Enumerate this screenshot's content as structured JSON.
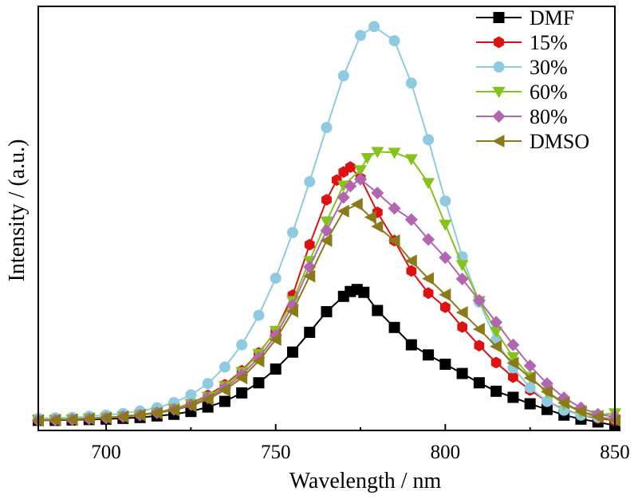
{
  "chart_data": {
    "type": "line",
    "title": "",
    "xlabel": "Wavelength / nm",
    "ylabel": "Intensity / (a.u.)",
    "xlim": [
      680,
      850
    ],
    "ylim": [
      0,
      1.05
    ],
    "xticks": [
      700,
      750,
      800,
      850
    ],
    "yticks_shown": false,
    "grid": false,
    "legend_position": "top-right",
    "series": [
      {
        "name": "DMF",
        "color": "#000000",
        "marker": "square",
        "x": [
          680,
          685,
          690,
          695,
          700,
          705,
          710,
          715,
          720,
          725,
          730,
          735,
          740,
          745,
          750,
          755,
          760,
          765,
          770,
          772,
          774,
          776,
          780,
          785,
          790,
          795,
          800,
          805,
          810,
          815,
          820,
          825,
          830,
          835,
          840,
          845,
          850
        ],
        "y": [
          0.025,
          0.025,
          0.026,
          0.027,
          0.028,
          0.03,
          0.032,
          0.036,
          0.04,
          0.047,
          0.058,
          0.072,
          0.093,
          0.118,
          0.152,
          0.194,
          0.243,
          0.294,
          0.332,
          0.344,
          0.349,
          0.342,
          0.297,
          0.255,
          0.212,
          0.187,
          0.164,
          0.141,
          0.118,
          0.097,
          0.082,
          0.066,
          0.052,
          0.038,
          0.028,
          0.021,
          0.012
        ]
      },
      {
        "name": "15%",
        "color": "#dd1111",
        "marker": "hexagon",
        "x": [
          680,
          685,
          690,
          695,
          700,
          705,
          710,
          715,
          720,
          725,
          730,
          735,
          740,
          745,
          750,
          755,
          760,
          765,
          768,
          770,
          772,
          775,
          780,
          785,
          790,
          795,
          800,
          805,
          810,
          815,
          820,
          825,
          830,
          835,
          840,
          845,
          850
        ],
        "y": [
          0.026,
          0.027,
          0.028,
          0.03,
          0.032,
          0.035,
          0.039,
          0.045,
          0.054,
          0.067,
          0.087,
          0.113,
          0.148,
          0.192,
          0.245,
          0.335,
          0.46,
          0.571,
          0.62,
          0.64,
          0.652,
          0.625,
          0.54,
          0.47,
          0.395,
          0.34,
          0.305,
          0.256,
          0.21,
          0.168,
          0.132,
          0.1,
          0.072,
          0.052,
          0.038,
          0.03,
          0.024
        ]
      },
      {
        "name": "30%",
        "color": "#8ecbe0",
        "marker": "circle",
        "x": [
          680,
          685,
          690,
          695,
          700,
          705,
          710,
          715,
          720,
          725,
          730,
          735,
          740,
          745,
          750,
          755,
          760,
          765,
          770,
          775,
          779,
          785,
          790,
          795,
          800,
          805,
          810,
          815,
          820,
          825,
          830,
          835,
          840,
          845,
          850
        ],
        "y": [
          0.03,
          0.031,
          0.032,
          0.035,
          0.038,
          0.042,
          0.048,
          0.056,
          0.069,
          0.088,
          0.116,
          0.157,
          0.212,
          0.285,
          0.377,
          0.49,
          0.616,
          0.75,
          0.878,
          0.978,
          1.0,
          0.965,
          0.86,
          0.72,
          0.568,
          0.43,
          0.318,
          0.224,
          0.155,
          0.106,
          0.072,
          0.05,
          0.038,
          0.033,
          0.03
        ]
      },
      {
        "name": "60%",
        "color": "#86c21c",
        "marker": "triangle-down",
        "x": [
          680,
          685,
          690,
          695,
          700,
          705,
          710,
          715,
          720,
          725,
          730,
          735,
          740,
          745,
          750,
          755,
          760,
          765,
          770,
          775,
          777,
          780,
          785,
          790,
          795,
          800,
          805,
          810,
          815,
          820,
          825,
          830,
          835,
          840,
          845,
          850
        ],
        "y": [
          0.026,
          0.027,
          0.028,
          0.03,
          0.032,
          0.035,
          0.039,
          0.045,
          0.054,
          0.066,
          0.084,
          0.11,
          0.145,
          0.19,
          0.247,
          0.321,
          0.42,
          0.518,
          0.607,
          0.645,
          0.675,
          0.69,
          0.688,
          0.672,
          0.613,
          0.51,
          0.41,
          0.321,
          0.245,
          0.182,
          0.133,
          0.095,
          0.065,
          0.046,
          0.038,
          0.043
        ]
      },
      {
        "name": "80%",
        "color": "#b266b0",
        "marker": "diamond",
        "x": [
          680,
          685,
          690,
          695,
          700,
          705,
          710,
          715,
          720,
          725,
          730,
          735,
          740,
          745,
          750,
          755,
          760,
          765,
          770,
          772,
          775,
          780,
          785,
          790,
          795,
          800,
          805,
          810,
          815,
          820,
          825,
          830,
          835,
          840,
          845,
          850
        ],
        "y": [
          0.025,
          0.026,
          0.027,
          0.029,
          0.031,
          0.034,
          0.038,
          0.044,
          0.052,
          0.064,
          0.081,
          0.105,
          0.138,
          0.18,
          0.235,
          0.31,
          0.405,
          0.495,
          0.577,
          0.605,
          0.622,
          0.588,
          0.55,
          0.522,
          0.473,
          0.428,
          0.375,
          0.322,
          0.268,
          0.212,
          0.16,
          0.116,
          0.081,
          0.056,
          0.04,
          0.034
        ]
      },
      {
        "name": "DMSO",
        "color": "#8b7a1a",
        "marker": "triangle-left",
        "x": [
          680,
          685,
          690,
          695,
          700,
          705,
          710,
          715,
          720,
          725,
          730,
          735,
          740,
          745,
          750,
          755,
          760,
          765,
          770,
          774,
          778,
          780,
          785,
          790,
          795,
          800,
          805,
          810,
          815,
          820,
          825,
          830,
          835,
          840,
          845,
          850
        ],
        "y": [
          0.025,
          0.026,
          0.027,
          0.029,
          0.031,
          0.034,
          0.038,
          0.043,
          0.05,
          0.061,
          0.077,
          0.1,
          0.13,
          0.172,
          0.225,
          0.295,
          0.382,
          0.47,
          0.543,
          0.56,
          0.528,
          0.505,
          0.47,
          0.42,
          0.376,
          0.336,
          0.292,
          0.251,
          0.208,
          0.167,
          0.13,
          0.096,
          0.068,
          0.047,
          0.033,
          0.025
        ]
      }
    ]
  }
}
